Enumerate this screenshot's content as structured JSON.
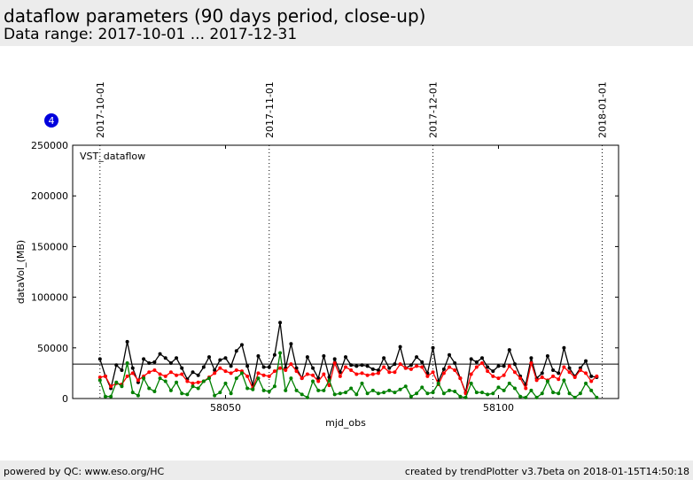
{
  "header": {
    "title": "dataflow parameters (90 days period, close-up)",
    "subtitle": "Data range: 2017-10-01 ... 2017-12-31"
  },
  "footer": {
    "left": "powered by QC: www.eso.org/HC",
    "right": "created by trendPlotter v3.7beta on 2018-01-15T14:50:18"
  },
  "chart_data": {
    "type": "line",
    "badge": "4",
    "legend": "VST_dataflow",
    "xlabel": "mjd_obs",
    "ylabel": "dataVol_(MB)",
    "xlim": [
      58022,
      58122
    ],
    "xticks": [
      58050,
      58100
    ],
    "ylim": [
      0,
      250000
    ],
    "yticks": [
      0,
      50000,
      100000,
      150000,
      200000,
      250000
    ],
    "reference_line": 34000,
    "date_markers": [
      {
        "value": 58027,
        "label": "2017-10-01"
      },
      {
        "value": 58058,
        "label": "2017-11-01"
      },
      {
        "value": 58088,
        "label": "2017-12-01"
      },
      {
        "value": 58119,
        "label": "2018-01-01"
      }
    ],
    "x": [
      58027,
      58028,
      58029,
      58030,
      58031,
      58032,
      58033,
      58034,
      58035,
      58036,
      58037,
      58038,
      58039,
      58040,
      58041,
      58042,
      58043,
      58044,
      58045,
      58046,
      58047,
      58048,
      58049,
      58050,
      58051,
      58052,
      58053,
      58054,
      58055,
      58056,
      58057,
      58058,
      58059,
      58060,
      58061,
      58062,
      58063,
      58064,
      58065,
      58066,
      58067,
      58068,
      58069,
      58070,
      58071,
      58072,
      58073,
      58074,
      58075,
      58076,
      58077,
      58078,
      58079,
      58080,
      58081,
      58082,
      58083,
      58084,
      58085,
      58086,
      58087,
      58088,
      58089,
      58090,
      58091,
      58092,
      58093,
      58094,
      58095,
      58096,
      58097,
      58098,
      58099,
      58100,
      58101,
      58102,
      58103,
      58104,
      58105,
      58106,
      58107,
      58108,
      58109,
      58110,
      58111,
      58112,
      58113,
      58114,
      58115,
      58116,
      58117,
      58118
    ],
    "series": [
      {
        "color": "#000000",
        "values": [
          39000,
          22000,
          10000,
          33000,
          28000,
          56000,
          30000,
          16000,
          39000,
          35000,
          36000,
          44000,
          40000,
          35000,
          40000,
          30000,
          19000,
          26000,
          23000,
          31000,
          41000,
          28000,
          38000,
          40000,
          32000,
          47000,
          53000,
          32000,
          13000,
          42000,
          31000,
          31000,
          43000,
          75000,
          30000,
          54000,
          30000,
          20000,
          41000,
          30000,
          20000,
          42000,
          21000,
          39000,
          26000,
          41000,
          33000,
          32000,
          33000,
          32000,
          29000,
          28000,
          40000,
          30000,
          34000,
          51000,
          30000,
          33000,
          41000,
          36000,
          25000,
          50000,
          17000,
          29000,
          43000,
          35000,
          20000,
          6000,
          39000,
          36000,
          40000,
          31000,
          27000,
          32000,
          32000,
          48000,
          34000,
          22000,
          14000,
          40000,
          20000,
          25000,
          42000,
          28000,
          25000,
          50000,
          30000,
          22000,
          30000,
          37000,
          22000,
          21000
        ]
      },
      {
        "color": "#ff0000",
        "values": [
          21000,
          22000,
          12000,
          15000,
          14000,
          22000,
          25000,
          18000,
          22000,
          26000,
          28000,
          24000,
          22000,
          26000,
          23000,
          24000,
          17000,
          15000,
          16000,
          17000,
          21000,
          25000,
          30000,
          27000,
          25000,
          28000,
          27000,
          22000,
          10000,
          25000,
          23000,
          22000,
          27000,
          30000,
          28000,
          34000,
          27000,
          20000,
          24000,
          23000,
          17000,
          24000,
          13000,
          35000,
          22000,
          31000,
          28000,
          24000,
          25000,
          23000,
          24000,
          25000,
          31000,
          26000,
          26000,
          34000,
          30000,
          29000,
          32000,
          31000,
          22000,
          26000,
          14000,
          25000,
          31000,
          28000,
          20000,
          5000,
          24000,
          31000,
          35000,
          27000,
          22000,
          20000,
          23000,
          32000,
          26000,
          20000,
          10000,
          35000,
          18000,
          21000,
          18000,
          22000,
          19000,
          31000,
          26000,
          21000,
          28000,
          25000,
          17000,
          22000
        ]
      },
      {
        "color": "#008000",
        "values": [
          18000,
          2000,
          2000,
          16000,
          12000,
          35000,
          6000,
          3000,
          20000,
          10000,
          7000,
          20000,
          17000,
          8000,
          16000,
          5000,
          4000,
          12000,
          10000,
          17000,
          20000,
          3000,
          6000,
          15000,
          5000,
          20000,
          25000,
          10000,
          9000,
          20000,
          8000,
          7000,
          12000,
          45000,
          8000,
          20000,
          8000,
          4000,
          1000,
          17000,
          8000,
          8000,
          18000,
          4000,
          5000,
          6000,
          10000,
          4000,
          15000,
          5000,
          8000,
          5000,
          6000,
          8000,
          6000,
          9000,
          12000,
          2000,
          5000,
          11000,
          5000,
          6000,
          15000,
          5000,
          8000,
          7000,
          2000,
          1000,
          15000,
          6000,
          6000,
          4000,
          5000,
          11000,
          8000,
          15000,
          10000,
          2000,
          1000,
          8000,
          1000,
          5000,
          17000,
          6000,
          5000,
          18000,
          5000,
          1000,
          5000,
          15000,
          8000,
          1000
        ]
      }
    ]
  }
}
